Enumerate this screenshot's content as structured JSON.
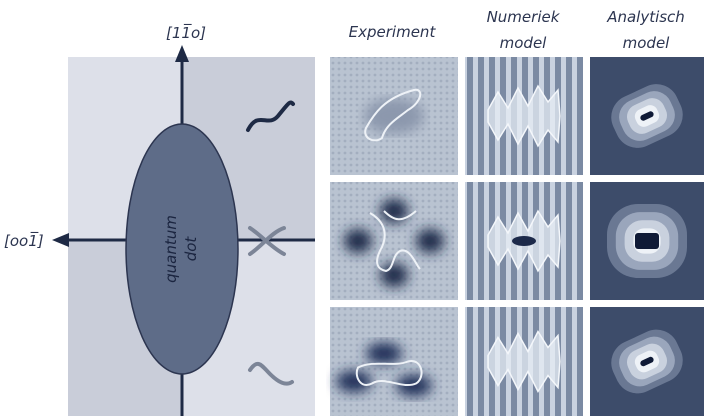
{
  "axes": {
    "vertical": "[11̅o]",
    "horizontal": "[oo1̅]"
  },
  "dot": {
    "lines": [
      "quantum",
      "dot"
    ]
  },
  "columns": [
    {
      "lines": [
        "Experiment"
      ]
    },
    {
      "lines": [
        "Numeriek",
        "model"
      ]
    },
    {
      "lines": [
        "Analytisch",
        "model"
      ]
    }
  ]
}
